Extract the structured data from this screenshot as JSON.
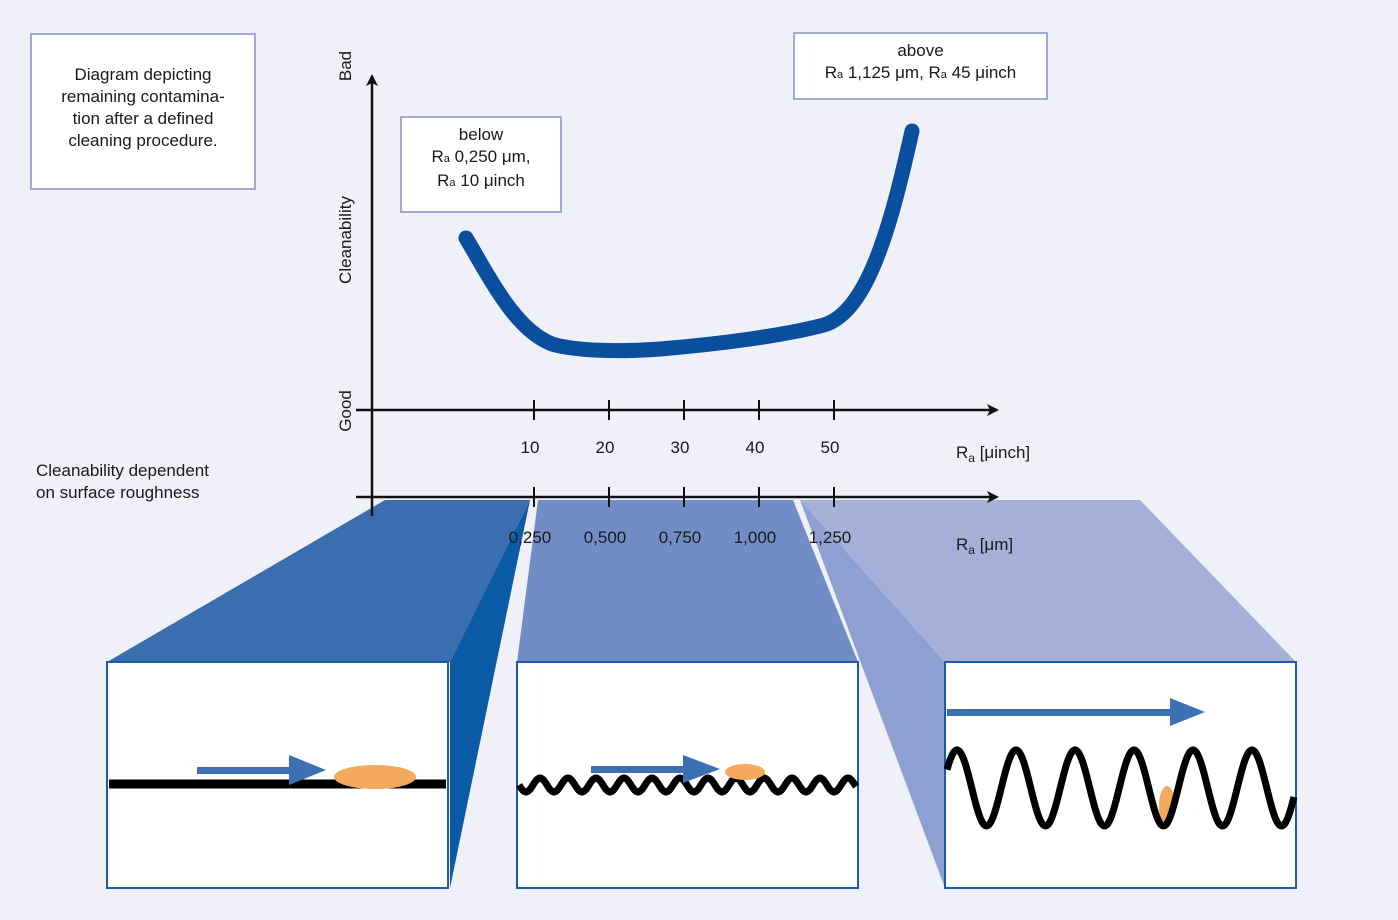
{
  "intro_box": {
    "line1": "Diagram depicting",
    "line2": "remaining contamina-",
    "line3": "tion after a defined",
    "line4": "cleaning procedure."
  },
  "caption": {
    "line1": "Cleanability dependent",
    "line2": "on surface roughness"
  },
  "below_box": {
    "line1": "below",
    "line2_prefix": "R",
    "line2_sub": "a",
    "line2_text": " 0,250 μm,",
    "line3_prefix": "R",
    "line3_sub": "a",
    "line3_text": " 10 μinch"
  },
  "above_box": {
    "line1": "above",
    "line2_prefix": "R",
    "line2_sub": "a",
    "line2_text1": " 1,125 μm, R",
    "line2_sub2": "a",
    "line2_text2": " 45 μinch"
  },
  "y_axis": {
    "label": "Cleanability",
    "top_label": "Bad",
    "bottom_label": "Good"
  },
  "x_axis_uinch": {
    "label_prefix": "R",
    "label_sub": "a",
    "label_unit": " [μinch]",
    "ticks": [
      "10",
      "20",
      "30",
      "40",
      "50"
    ]
  },
  "x_axis_um": {
    "label_prefix": "R",
    "label_sub": "a",
    "label_unit": " [μm]",
    "ticks": [
      "0,250",
      "0,500",
      "0,750",
      "1,000",
      "1,250"
    ]
  },
  "colors": {
    "background": "#eff0f8",
    "curve": "#0a4f9e",
    "arrow": "#3c6fb4",
    "contaminant": "#f4a95c",
    "panel_border": "#1f5aa8",
    "zone_dark": "#3b6eaf",
    "zone_dark_side": "#0b5aa6",
    "zone_mid": "#728dc5",
    "zone_light": "#a4b0d8",
    "zone_light_side": "#8ea0d2"
  }
}
